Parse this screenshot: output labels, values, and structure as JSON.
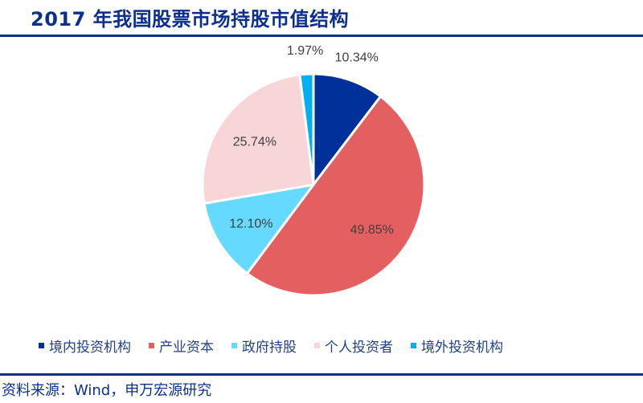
{
  "header": {
    "title": "2017 年我国股票市场持股市值结构"
  },
  "footer": {
    "source": "资料来源：Wind，申万宏源研究"
  },
  "colors": {
    "accent": "#0a2f8f"
  },
  "chart_data": {
    "type": "pie",
    "title": "",
    "start": "top",
    "direction": "clockwise",
    "legend_position": "bottom",
    "slices": [
      {
        "name": "境内投资机构",
        "value": 10.34,
        "label": "10.34%",
        "color": "#00309a"
      },
      {
        "name": "产业资本",
        "value": 49.85,
        "label": "49.85%",
        "color": "#e45f60"
      },
      {
        "name": "政府持股",
        "value": 12.1,
        "label": "12.10%",
        "color": "#66d9ff"
      },
      {
        "name": "个人投资者",
        "value": 25.74,
        "label": "25.74%",
        "color": "#f8d5d6"
      },
      {
        "name": "境外投资机构",
        "value": 1.97,
        "label": "1.97%",
        "color": "#00b0f0"
      }
    ]
  }
}
